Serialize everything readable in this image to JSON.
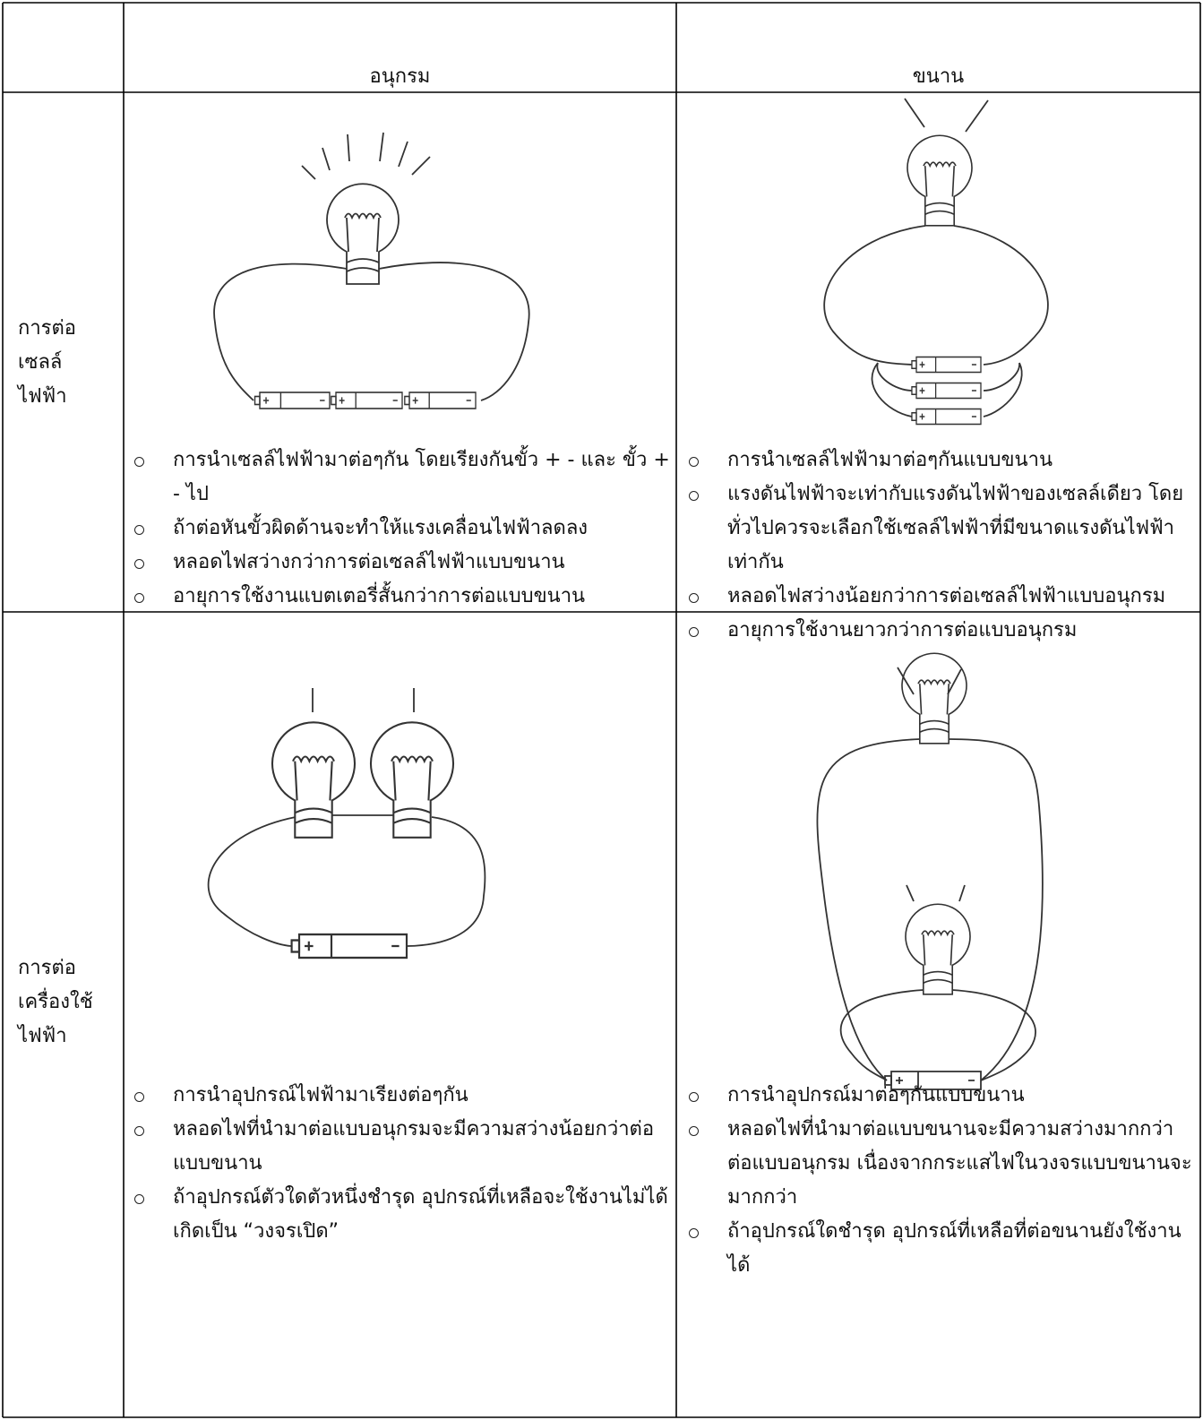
{
  "header": {
    "columns": [
      "อนุกรม",
      "ขนาน"
    ]
  },
  "rows": [
    {
      "label": [
        "การต่อ",
        "เซลล์",
        "ไฟฟ้า"
      ],
      "series": [
        "การนำเซลล์ไฟฟ้ามาต่อๆกัน โดยเรียงกันขั้ว + - และ ขั้ว + - ไป",
        "ถ้าต่อหันขั้วผิดด้านจะทำให้แรงเคลื่อนไฟฟ้าลดลง",
        "หลอดไฟสว่างกว่าการต่อเซลล์ไฟฟ้าแบบขนาน",
        "อายุการใช้งานแบตเตอรี่สั้นกว่าการต่อแบบขนาน"
      ],
      "parallel": [
        "การนำเซลล์ไฟฟ้ามาต่อๆกันแบบขนาน",
        "แรงดันไฟฟ้าจะเท่ากับแรงดันไฟฟ้าของเซลล์เดียว โดยทั่วไปควรจะเลือกใช้เซลล์ไฟฟ้าที่มีขนาดแรงดันไฟฟ้าเท่ากัน",
        "หลอดไฟสว่างน้อยกว่าการต่อเซลล์ไฟฟ้าแบบอนุกรม",
        "อายุการใช้งานยาวกว่าการต่อแบบอนุกรม"
      ]
    },
    {
      "label": [
        "การต่อ",
        "เครื่องใช้",
        "ไฟฟ้า"
      ],
      "series": [
        "การนำอุปกรณ์ไฟฟ้ามาเรียงต่อๆกัน",
        "หลอดไฟที่นำมาต่อแบบอนุกรมจะมีความสว่างน้อยกว่าต่อแบบขนาน",
        "ถ้าอุปกรณ์ตัวใดตัวหนึ่งชำรุด อุปกรณ์ที่เหลือจะใช้งานไม่ได้ เกิดเป็น “วงจรเปิด”"
      ],
      "parallel": [
        "การนำอุปกรณ์มาต่อๆกันแบบขนาน",
        "หลอดไฟที่นำมาต่อแบบขนานจะมีความสว่างมากกว่าต่อแบบอนุกรม เนื่องจากกระแสไฟในวงจรแบบขนานจะมากกว่า",
        "ถ้าอุปกรณ์ใดชำรุด อุปกรณ์ที่เหลือที่ต่อขนานยังใช้งานได้"
      ]
    }
  ]
}
